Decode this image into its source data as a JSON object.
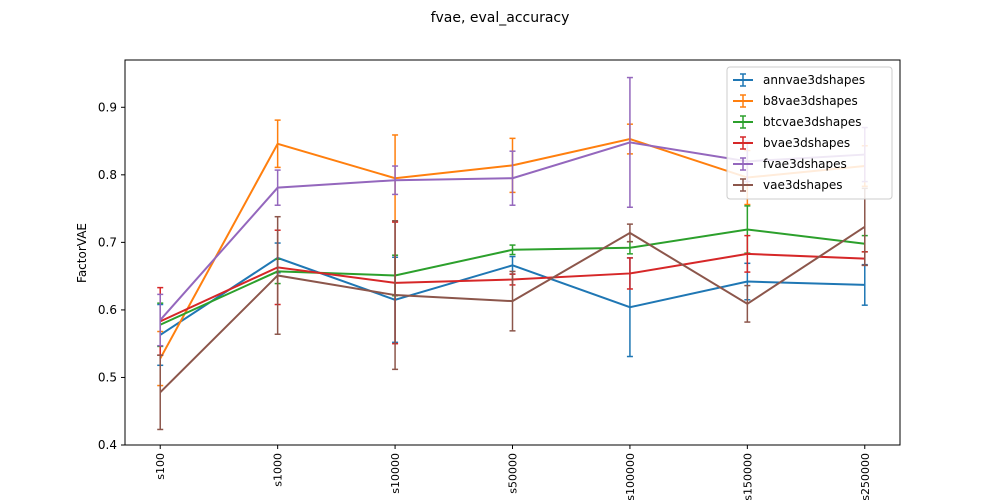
{
  "chart_data": {
    "type": "line",
    "title": "fvae, eval_accuracy",
    "xlabel": "",
    "ylabel": "FactorVAE",
    "categories": [
      "s100",
      "s1000",
      "s10000",
      "s50000",
      "s100000",
      "s150000",
      "s250000"
    ],
    "ylim": [
      0.4,
      0.97
    ],
    "yticks": [
      0.4,
      0.5,
      0.6,
      0.7,
      0.8,
      0.9
    ],
    "ytick_labels": [
      "0.4",
      "0.5",
      "0.6",
      "0.7",
      "0.8",
      "0.9"
    ],
    "grid": false,
    "legend_position": "top-right",
    "error_bars": true,
    "series": [
      {
        "name": "annvae3dshapes",
        "color": "#1f77b4",
        "values": [
          0.563,
          0.677,
          0.615,
          0.666,
          0.604,
          0.642,
          0.637
        ],
        "errors": [
          0.045,
          0.022,
          0.063,
          0.013,
          0.073,
          0.027,
          0.03
        ]
      },
      {
        "name": "b8vae3dshapes",
        "color": "#ff7f0e",
        "values": [
          0.528,
          0.846,
          0.795,
          0.814,
          0.853,
          0.796,
          0.813
        ],
        "errors": [
          0.04,
          0.035,
          0.064,
          0.04,
          0.022,
          0.04,
          0.03
        ]
      },
      {
        "name": "btcvae3dshapes",
        "color": "#2ca02c",
        "values": [
          0.578,
          0.657,
          0.651,
          0.689,
          0.692,
          0.719,
          0.698
        ],
        "errors": [
          0.032,
          0.018,
          0.03,
          0.007,
          0.009,
          0.035,
          0.012
        ]
      },
      {
        "name": "bvae3dshapes",
        "color": "#d62728",
        "values": [
          0.583,
          0.663,
          0.64,
          0.645,
          0.654,
          0.683,
          0.676
        ],
        "errors": [
          0.05,
          0.055,
          0.09,
          0.008,
          0.023,
          0.027,
          0.01
        ]
      },
      {
        "name": "fvae3dshapes",
        "color": "#9467bd",
        "values": [
          0.585,
          0.781,
          0.792,
          0.795,
          0.848,
          0.82,
          0.83
        ],
        "errors": [
          0.038,
          0.026,
          0.021,
          0.04,
          0.096,
          0.03,
          0.04
        ]
      },
      {
        "name": "vae3dshapes",
        "color": "#8c564b",
        "values": [
          0.478,
          0.651,
          0.622,
          0.613,
          0.714,
          0.609,
          0.723
        ],
        "errors": [
          0.055,
          0.087,
          0.11,
          0.044,
          0.013,
          0.027,
          0.057
        ]
      }
    ]
  }
}
